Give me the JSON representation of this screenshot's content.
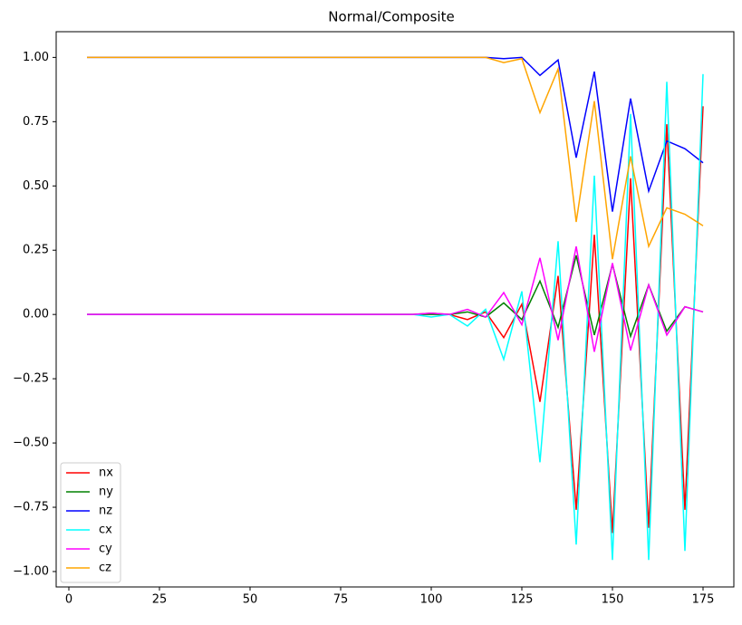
{
  "chart_data": {
    "type": "line",
    "title": "Normal/Composite",
    "x": [
      5,
      10,
      15,
      20,
      25,
      30,
      35,
      40,
      45,
      50,
      55,
      60,
      65,
      70,
      75,
      80,
      85,
      90,
      95,
      100,
      105,
      110,
      115,
      120,
      125,
      130,
      135,
      140,
      145,
      150,
      155,
      160,
      165,
      170,
      175
    ],
    "series": [
      {
        "name": "nx",
        "color": "#ff0000",
        "values": [
          0,
          0,
          0,
          0,
          0,
          0,
          0,
          0,
          0,
          0,
          0,
          0,
          0,
          0,
          0,
          0,
          0,
          0,
          0,
          0.005,
          0,
          -0.02,
          0.01,
          -0.09,
          0.04,
          -0.34,
          0.15,
          -0.76,
          0.31,
          -0.85,
          0.53,
          -0.83,
          0.74,
          -0.76,
          0.81
        ]
      },
      {
        "name": "ny",
        "color": "#008000",
        "values": [
          0,
          0,
          0,
          0,
          0,
          0,
          0,
          0,
          0,
          0,
          0,
          0,
          0,
          0,
          0,
          0,
          0,
          0,
          0,
          0,
          0,
          0.01,
          -0.01,
          0.045,
          -0.02,
          0.13,
          -0.05,
          0.23,
          -0.08,
          0.195,
          -0.085,
          0.115,
          -0.065,
          0.03,
          0.01
        ]
      },
      {
        "name": "nz",
        "color": "#0000ff",
        "values": [
          1,
          1,
          1,
          1,
          1,
          1,
          1,
          1,
          1,
          1,
          1,
          1,
          1,
          1,
          1,
          1,
          1,
          1,
          1,
          1,
          1,
          1,
          1,
          0.995,
          1,
          0.93,
          0.99,
          0.61,
          0.945,
          0.4,
          0.84,
          0.48,
          0.675,
          0.645,
          0.59
        ]
      },
      {
        "name": "cx",
        "color": "#00ffff",
        "values": [
          0,
          0,
          0,
          0,
          0,
          0,
          0,
          0,
          0,
          0,
          0,
          0,
          0,
          0,
          0,
          0,
          0,
          0,
          0,
          -0.01,
          0,
          -0.045,
          0.02,
          -0.175,
          0.09,
          -0.575,
          0.285,
          -0.895,
          0.54,
          -0.955,
          0.78,
          -0.955,
          0.905,
          -0.92,
          0.935
        ]
      },
      {
        "name": "cy",
        "color": "#ff00ff",
        "values": [
          0,
          0,
          0,
          0,
          0,
          0,
          0,
          0,
          0,
          0,
          0,
          0,
          0,
          0,
          0,
          0,
          0,
          0,
          0,
          0.005,
          0,
          0.02,
          -0.01,
          0.085,
          -0.04,
          0.22,
          -0.1,
          0.265,
          -0.145,
          0.2,
          -0.14,
          0.115,
          -0.08,
          0.03,
          0.01
        ]
      },
      {
        "name": "cz",
        "color": "#ffa500",
        "values": [
          1,
          1,
          1,
          1,
          1,
          1,
          1,
          1,
          1,
          1,
          1,
          1,
          1,
          1,
          1,
          1,
          1,
          1,
          1,
          1,
          1,
          1,
          1,
          0.98,
          0.995,
          0.785,
          0.955,
          0.36,
          0.83,
          0.215,
          0.615,
          0.265,
          0.415,
          0.39,
          0.345
        ]
      }
    ],
    "xlim": [
      -3.5,
      183.5
    ],
    "ylim": [
      -1.06,
      1.1
    ],
    "xticks": [
      0,
      25,
      50,
      75,
      100,
      125,
      150,
      175
    ],
    "yticks": [
      {
        "value": -1,
        "label": "−1.00"
      },
      {
        "value": -0.75,
        "label": "−0.75"
      },
      {
        "value": -0.5,
        "label": "−0.50"
      },
      {
        "value": -0.25,
        "label": "−0.25"
      },
      {
        "value": 0,
        "label": "0.00"
      },
      {
        "value": 0.25,
        "label": "0.25"
      },
      {
        "value": 0.5,
        "label": "0.50"
      },
      {
        "value": 0.75,
        "label": "0.75"
      },
      {
        "value": 1,
        "label": "1.00"
      }
    ],
    "legend": "lower left"
  }
}
